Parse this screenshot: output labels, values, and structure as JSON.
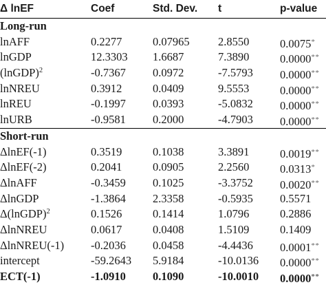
{
  "header": {
    "var": "Δ lnEF",
    "coef": "Coef",
    "std": "Std. Dev.",
    "t": "t",
    "p": "p-value"
  },
  "sections": [
    {
      "title": "Long-run",
      "rows": [
        {
          "var": "lnAFF",
          "sup": "",
          "coef": "0.2277",
          "std": "0.07965",
          "t": "2.8550",
          "p": "0.0075",
          "stars": "*",
          "bold": false
        },
        {
          "var": "lnGDP",
          "sup": "",
          "coef": "12.3303",
          "std": "1.6687",
          "t": "7.3890",
          "p": "0.0000",
          "stars": "**",
          "bold": false
        },
        {
          "var": "(lnGDP)",
          "sup": "2",
          "coef": "-0.7367",
          "std": "0.0972",
          "t": "-7.5793",
          "p": "0.0000",
          "stars": "**",
          "bold": false
        },
        {
          "var": "lnNREU",
          "sup": "",
          "coef": "0.3912",
          "std": "0.0409",
          "t": "9.5553",
          "p": "0.0000",
          "stars": "**",
          "bold": false
        },
        {
          "var": "lnREU",
          "sup": "",
          "coef": "-0.1997",
          "std": "0.0393",
          "t": "-5.0832",
          "p": "0.0000",
          "stars": "**",
          "bold": false
        },
        {
          "var": "lnURB",
          "sup": "",
          "coef": "-0.9581",
          "std": "0.2000",
          "t": "-4.7903",
          "p": "0.0000",
          "stars": "**",
          "bold": false
        }
      ]
    },
    {
      "title": "Short-run",
      "rows": [
        {
          "var": "ΔlnEF(-1)",
          "sup": "",
          "coef": "0.3519",
          "std": "0.1038",
          "t": "3.3891",
          "p": "0.0019",
          "stars": "**",
          "bold": false
        },
        {
          "var": "ΔlnEF(-2)",
          "sup": "",
          "coef": "0.2041",
          "std": "0.0905",
          "t": "2.2560",
          "p": "0.0313",
          "stars": "*",
          "bold": false
        },
        {
          "var": "ΔlnAFF",
          "sup": "",
          "coef": "-0.3459",
          "std": "0.1025",
          "t": "-3.3752",
          "p": "0.0020",
          "stars": "**",
          "bold": false
        },
        {
          "var": "ΔlnGDP",
          "sup": "",
          "coef": "-1.3864",
          "std": "2.3358",
          "t": "-0.5935",
          "p": "0.5571",
          "stars": "",
          "bold": false
        },
        {
          "var": "Δ(lnGDP)",
          "sup": "2",
          "coef": "0.1526",
          "std": "0.1414",
          "t": "1.0796",
          "p": "0.2886",
          "stars": "",
          "bold": false
        },
        {
          "var": "ΔlnNREU",
          "sup": "",
          "coef": "0.0617",
          "std": "0.0408",
          "t": "1.5109",
          "p": "0.1409",
          "stars": "",
          "bold": false
        },
        {
          "var": "ΔlnNREU(-1)",
          "sup": "",
          "coef": "-0.2036",
          "std": "0.0458",
          "t": "-4.4436",
          "p": "0.0001",
          "stars": "**",
          "bold": false
        },
        {
          "var": "intercept",
          "sup": "",
          "coef": "-59.2643",
          "std": "5.9184",
          "t": "-10.0136",
          "p": "0.0000",
          "stars": "**",
          "bold": false
        },
        {
          "var": "ECT(-1)",
          "sup": "",
          "coef": "-1.0910",
          "std": "0.1090",
          "t": "-10.0010",
          "p": "0.0000",
          "stars": "**",
          "bold": true
        }
      ]
    }
  ]
}
